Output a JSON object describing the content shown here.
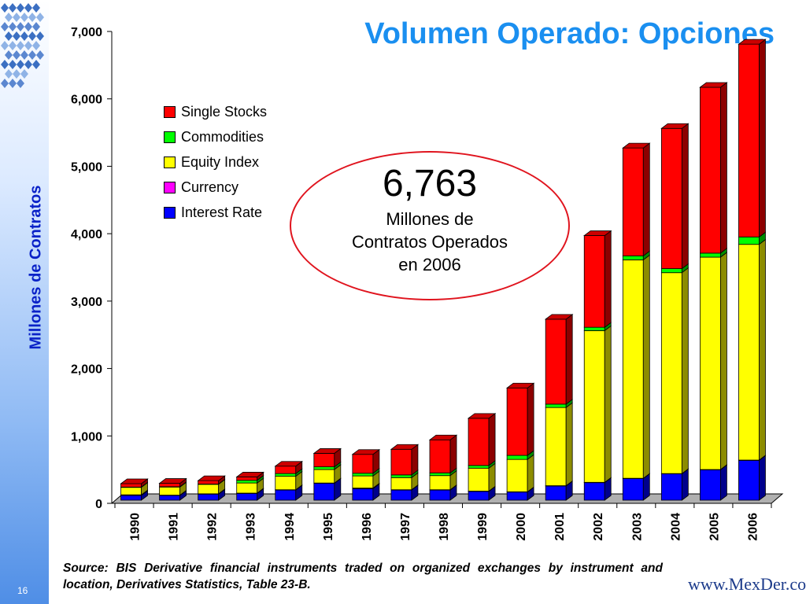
{
  "slide": {
    "title": "Volumen Operado: Opciones",
    "page_number": "16",
    "source": "Source: BIS Derivative financial instruments traded on organized exchanges by instrument and location, Derivatives Statistics, Table 23-B.",
    "logo_text": "www.MexDer.com"
  },
  "callout": {
    "value": "6,763",
    "text": "Millones de Contratos Operados en 2006"
  },
  "chart_data": {
    "type": "bar",
    "stacked": true,
    "ylabel": "Millones de Contratos",
    "ylim": [
      0,
      7000
    ],
    "y_ticks": [
      "0",
      "1,000",
      "2,000",
      "3,000",
      "4,000",
      "5,000",
      "6,000",
      "7,000"
    ],
    "y_tick_values": [
      0,
      1000,
      2000,
      3000,
      4000,
      5000,
      6000,
      7000
    ],
    "categories": [
      "1990",
      "1991",
      "1992",
      "1993",
      "1994",
      "1995",
      "1996",
      "1997",
      "1998",
      "1999",
      "2000",
      "2001",
      "2002",
      "2003",
      "2004",
      "2005",
      "2006"
    ],
    "legend_position": "upper-left",
    "series": [
      {
        "name": "Interest Rate",
        "color": "#0000ff",
        "values": [
          70,
          70,
          90,
          100,
          150,
          250,
          170,
          150,
          150,
          130,
          120,
          210,
          260,
          320,
          390,
          450,
          590
        ]
      },
      {
        "name": "Currency",
        "color": "#ff00ff",
        "values": [
          10,
          5,
          5,
          5,
          5,
          5,
          10,
          5,
          5,
          5,
          5,
          5,
          5,
          5,
          5,
          5,
          5
        ]
      },
      {
        "name": "Equity Index",
        "color": "#ffff00",
        "values": [
          110,
          120,
          140,
          150,
          200,
          200,
          180,
          180,
          210,
          340,
          480,
          1160,
          2250,
          3240,
          2980,
          3150,
          3200
        ]
      },
      {
        "name": "Commodities",
        "color": "#00ff00",
        "values": [
          5,
          5,
          5,
          40,
          40,
          40,
          40,
          40,
          40,
          40,
          60,
          50,
          50,
          60,
          60,
          60,
          110
        ]
      },
      {
        "name": "Single Stocks",
        "color": "#ff0000",
        "values": [
          50,
          50,
          50,
          50,
          110,
          200,
          280,
          380,
          490,
          700,
          1000,
          1260,
          1360,
          1600,
          2080,
          2460,
          2860
        ]
      }
    ]
  }
}
